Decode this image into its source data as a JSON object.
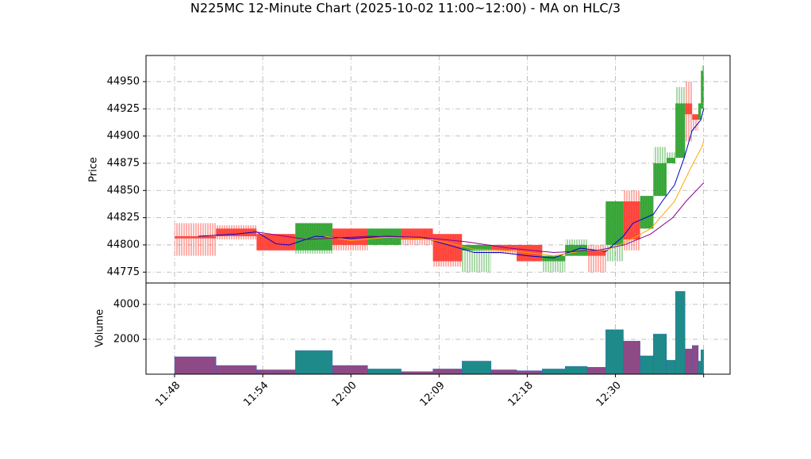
{
  "chart_data": {
    "type": "candlestick",
    "title": "N225MC 12-Minute Chart (2025-10-02 11:00~12:00) - MA on HLC/3",
    "ylabel": "Price",
    "y2label": "Volume",
    "up_color": "#2ca02c",
    "down_color": "#ff3b30",
    "volume_up_color": "#1f8a8a",
    "volume_down_color": "#8e4a86",
    "x_start": [
      0,
      4.7,
      9.3,
      13.7,
      17.9,
      21.9,
      25.7,
      29.3,
      32.6,
      35.9,
      38.8,
      41.7,
      44.3,
      46.8,
      48.9,
      50.9,
      52.8,
      54.3,
      55.8,
      56.8,
      57.9,
      58.7,
      59.4,
      59.7
    ],
    "x_end": [
      4.7,
      9.3,
      13.7,
      17.9,
      21.9,
      25.7,
      29.3,
      32.6,
      35.9,
      38.8,
      41.7,
      44.3,
      46.8,
      48.9,
      50.9,
      52.8,
      54.3,
      55.8,
      56.8,
      57.9,
      58.7,
      59.4,
      59.7,
      60
    ],
    "open": [
      44808,
      44815,
      44810,
      44795,
      44815,
      44800,
      44815,
      44810,
      44795,
      44800,
      44800,
      44785,
      44790,
      44795,
      44800,
      44840,
      44815,
      44845,
      44875,
      44880,
      44930,
      44920,
      44915,
      44925
    ],
    "high": [
      44820,
      44818,
      44810,
      44820,
      44815,
      44815,
      44815,
      44810,
      44800,
      44800,
      44800,
      44790,
      44805,
      44800,
      44840,
      44850,
      44845,
      44890,
      44885,
      44945,
      44950,
      44920,
      44930,
      44965
    ],
    "low": [
      44790,
      44805,
      44795,
      44792,
      44795,
      44800,
      44800,
      44780,
      44775,
      44792,
      44785,
      44775,
      44790,
      44775,
      44785,
      44795,
      44815,
      44845,
      44875,
      44880,
      44895,
      44905,
      44915,
      44925
    ],
    "close": [
      44806,
      44808,
      44795,
      44820,
      44800,
      44815,
      44805,
      44785,
      44800,
      44795,
      44785,
      44790,
      44800,
      44790,
      44840,
      44805,
      44845,
      44875,
      44880,
      44930,
      44920,
      44915,
      44930,
      44960
    ],
    "volume": [
      1000,
      500,
      250,
      1350,
      500,
      300,
      150,
      300,
      750,
      250,
      200,
      300,
      450,
      400,
      2550,
      1900,
      1050,
      2300,
      800,
      4750,
      1450,
      1650,
      750,
      1400
    ],
    "ma": [
      {
        "color": "#0000cc",
        "x": [
          2.7,
          7,
          9.3,
          11.5,
          13,
          16,
          20,
          24,
          28,
          31,
          34,
          37,
          40,
          43,
          46,
          48.9,
          50.9,
          52,
          54.3,
          55.3,
          56.7,
          57.8,
          58.7,
          59.7,
          60
        ],
        "values": [
          44808,
          44810,
          44812,
          44801,
          44800,
          44808,
          44806,
          44808,
          44807,
          44800,
          44793,
          44793,
          44790,
          44788,
          44797,
          44794,
          44808,
          44820,
          44828,
          44840,
          44855,
          44880,
          44905,
          44915,
          44925
        ]
      },
      {
        "color": "#ffa500",
        "x": [
          17,
          20,
          24,
          28,
          31,
          34,
          37,
          40,
          43,
          46,
          48.9,
          50.4,
          52,
          54,
          56.7,
          58.5,
          59.8,
          60
        ],
        "values": [
          44808,
          44804,
          44807,
          44806,
          44802,
          44796,
          44795,
          44793,
          44790,
          44794,
          44795,
          44800,
          44806,
          44815,
          44840,
          44870,
          44890,
          44895
        ]
      },
      {
        "color": "#8b008b",
        "x": [
          9.2,
          15,
          22,
          28,
          33,
          38,
          43,
          48,
          51,
          54,
          56.5,
          58,
          60
        ],
        "values": [
          44812,
          44805,
          44808,
          44807,
          44803,
          44797,
          44793,
          44795,
          44800,
          44810,
          44825,
          44840,
          44857
        ]
      }
    ],
    "xlim": [
      -3.24,
      63
    ],
    "ylim": [
      44765,
      44974
    ],
    "y2lim": [
      0,
      5227
    ],
    "xticks": [
      {
        "value": 0,
        "label": "11:48"
      },
      {
        "value": 10,
        "label": "11:54"
      },
      {
        "value": 20,
        "label": "12:00"
      },
      {
        "value": 30,
        "label": "12:09"
      },
      {
        "value": 40,
        "label": "12:18"
      },
      {
        "value": 50,
        "label": "12:30"
      },
      {
        "value": 60,
        "label": null
      }
    ],
    "yticks": [
      44775,
      44800,
      44825,
      44850,
      44875,
      44900,
      44925,
      44950
    ],
    "y2ticks": [
      2000,
      4000
    ],
    "grid": true
  }
}
